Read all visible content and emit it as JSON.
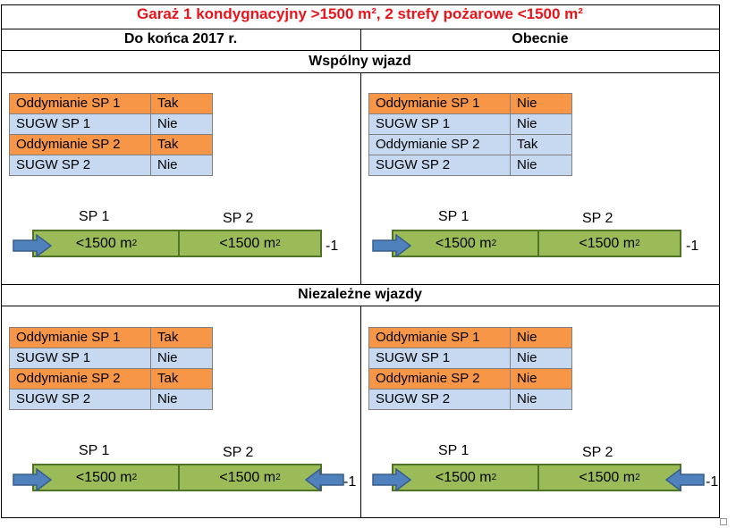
{
  "title": "Garaż 1 kondygnacyjny >1500 m², 2 strefy pożarowe <1500 m²",
  "columns": {
    "left": "Do końca 2017 r.",
    "right": "Obecnie"
  },
  "sections": {
    "shared": "Wspólny wjazd",
    "independent": "Niezależne wjazdy"
  },
  "panels": {
    "shared_left": {
      "rows": [
        {
          "name": "Oddymianie SP 1",
          "value": "Tak"
        },
        {
          "name": "SUGW SP 1",
          "value": "Nie"
        },
        {
          "name": "Oddymianie SP 2",
          "value": "Tak"
        },
        {
          "name": "SUGW SP 2",
          "value": "Nie"
        }
      ]
    },
    "shared_right": {
      "rows": [
        {
          "name": "Oddymianie SP 1",
          "value": "Nie"
        },
        {
          "name": "SUGW SP 1",
          "value": "Nie"
        },
        {
          "name": "Oddymianie SP 2",
          "value": "Tak"
        },
        {
          "name": "SUGW SP 2",
          "value": "Nie"
        }
      ]
    },
    "independent_left": {
      "rows": [
        {
          "name": "Oddymianie SP 1",
          "value": "Tak"
        },
        {
          "name": "SUGW SP 1",
          "value": "Nie"
        },
        {
          "name": "Oddymianie SP 2",
          "value": "Tak"
        },
        {
          "name": "SUGW SP 2",
          "value": "Nie"
        }
      ]
    },
    "independent_right": {
      "rows": [
        {
          "name": "Oddymianie SP 1",
          "value": "Nie"
        },
        {
          "name": "SUGW SP 1",
          "value": "Nie"
        },
        {
          "name": "Oddymianie SP 2",
          "value": "Nie"
        },
        {
          "name": "SUGW SP 2",
          "value": "Nie"
        }
      ]
    }
  },
  "zones": {
    "sp1": "SP 1",
    "sp2": "SP 2",
    "area": "<1500 m",
    "area_exp": "2",
    "level": "-1"
  },
  "colors": {
    "title": "#e8131b",
    "orange_row": "#f79646",
    "blue_row": "#c6d9f1",
    "bar_fill": "#9bbb59",
    "bar_border": "#4f7428",
    "arrow_fill": "#4f81bd",
    "arrow_border": "#385d8a"
  },
  "icons": {
    "entry": "arrow-right-icon",
    "exit": "arrow-left-icon"
  }
}
